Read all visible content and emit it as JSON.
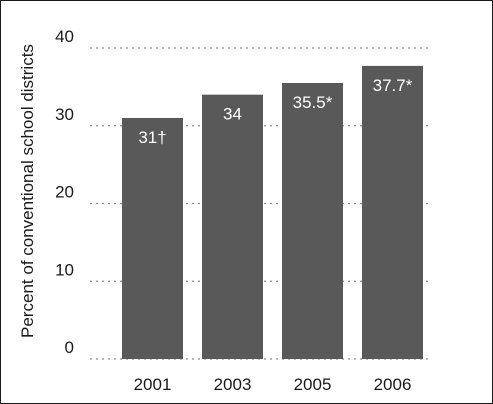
{
  "chart_data": {
    "type": "bar",
    "categories": [
      "2001",
      "2003",
      "2005",
      "2006"
    ],
    "values": [
      31,
      34,
      35.5,
      37.7
    ],
    "value_labels": [
      "31†",
      "34",
      "35.5*",
      "37.7*"
    ],
    "title": "",
    "xlabel": "",
    "ylabel": "Percent of conventional school districts",
    "ylim": [
      0,
      40
    ],
    "yticks": [
      "0",
      "10",
      "20",
      "30",
      "40"
    ],
    "grid": true,
    "bar_color": "#595959",
    "grid_color": "#8c8c8c"
  }
}
